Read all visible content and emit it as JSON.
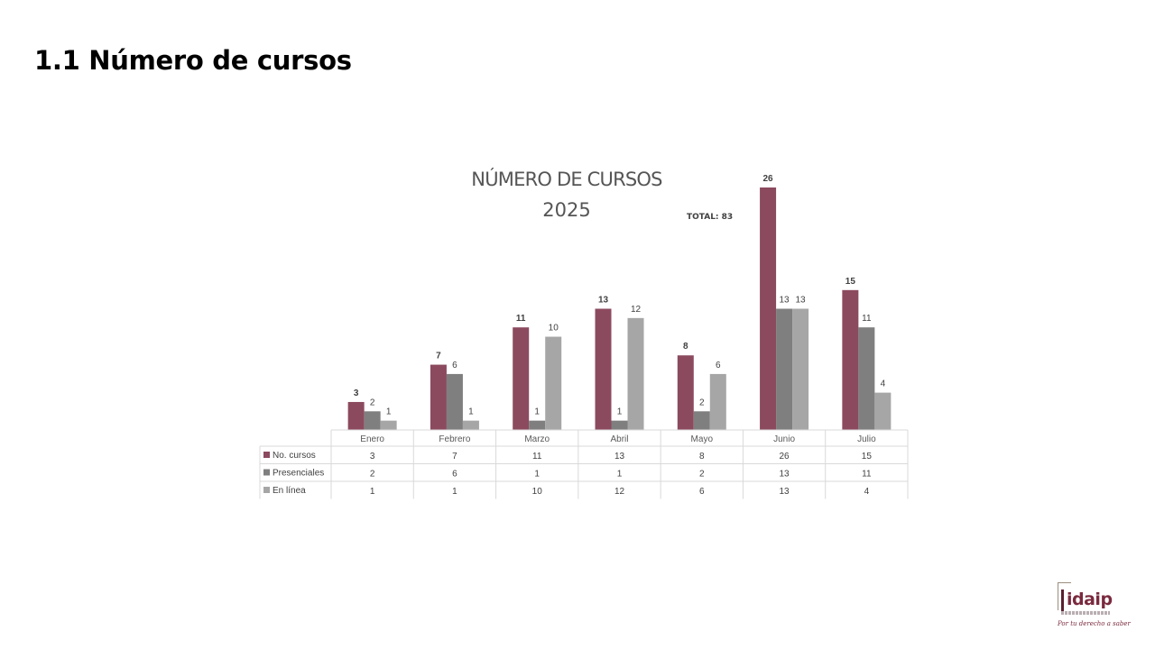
{
  "page": {
    "heading": "1.1 Número de cursos"
  },
  "chart_data": {
    "type": "bar",
    "title": "NÚMERO DE CURSOS",
    "subtitle": "2025",
    "annotation": "TOTAL: 83",
    "categories": [
      "Enero",
      "Febrero",
      "Marzo",
      "Abril",
      "Mayo",
      "Junio",
      "Julio"
    ],
    "series": [
      {
        "name": "No. cursos",
        "values": [
          3,
          7,
          11,
          13,
          8,
          26,
          15
        ],
        "color": "#8c4a5f",
        "label_bold": true
      },
      {
        "name": "Presenciales",
        "values": [
          2,
          6,
          1,
          1,
          2,
          13,
          11
        ],
        "color": "#7f7f7f",
        "label_bold": false
      },
      {
        "name": "En línea",
        "values": [
          1,
          1,
          10,
          12,
          6,
          13,
          4
        ],
        "color": "#a6a6a6",
        "label_bold": false
      }
    ],
    "ylim": [
      0,
      26
    ],
    "grid": false,
    "legend": "data-table",
    "data_table": true
  },
  "logo": {
    "name": "idaip",
    "slogan": "Por tu derecho a saber"
  }
}
